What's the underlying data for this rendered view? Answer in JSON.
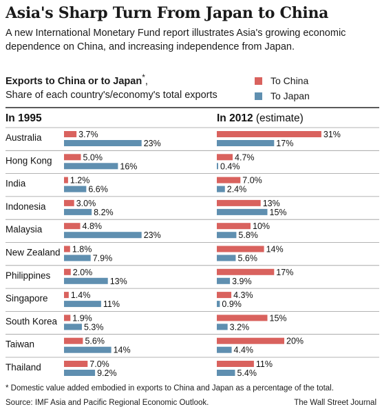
{
  "title": "Asia's Sharp Turn From Japan to China",
  "subtitle": "A new International Monetary Fund report illustrates Asia's growing economic dependence on China, and increasing independence from Japan.",
  "chart_heading": "Exports to China or to Japan",
  "chart_heading_mark": "*",
  "chart_subheading": "Share of each country's/economy's total exports",
  "footnote": "* Domestic value added embodied in exports to China and Japan as a percentage of the total.",
  "source": "Source: IMF Asia and Pacific Regional Economic Outlook.",
  "credit": "The Wall Street Journal",
  "colors": {
    "china": "#d9625e",
    "japan": "#5f8fb0"
  },
  "chart_data": {
    "type": "bar",
    "orientation": "horizontal",
    "categories": [
      "Australia",
      "Hong Kong",
      "India",
      "Indonesia",
      "Malaysia",
      "New Zealand",
      "Philippines",
      "Singapore",
      "South Korea",
      "Taiwan",
      "Thailand"
    ],
    "legend": [
      "To China",
      "To Japan"
    ],
    "panels": [
      {
        "year": "In 1995",
        "note": "",
        "series": [
          {
            "name": "To China",
            "values": [
              3.7,
              5.0,
              1.2,
              3.0,
              4.8,
              1.8,
              2.0,
              1.4,
              1.9,
              5.6,
              7.0
            ],
            "labels": [
              "3.7%",
              "5.0%",
              "1.2%",
              "3.0%",
              "4.8%",
              "1.8%",
              "2.0%",
              "1.4%",
              "1.9%",
              "5.6%",
              "7.0%"
            ]
          },
          {
            "name": "To Japan",
            "values": [
              23,
              16,
              6.6,
              8.2,
              23,
              7.9,
              13,
              11,
              5.3,
              14,
              9.2
            ],
            "labels": [
              "23%",
              "16%",
              "6.6%",
              "8.2%",
              "23%",
              "7.9%",
              "13%",
              "11%",
              "5.3%",
              "14%",
              "9.2%"
            ]
          }
        ]
      },
      {
        "year": "In 2012",
        "note": "(estimate)",
        "series": [
          {
            "name": "To China",
            "values": [
              31,
              4.7,
              7.0,
              13,
              10,
              14,
              17,
              4.3,
              15,
              20,
              11
            ],
            "labels": [
              "31%",
              "4.7%",
              "7.0%",
              "13%",
              "10%",
              "14%",
              "17%",
              "4.3%",
              "15%",
              "20%",
              "11%"
            ]
          },
          {
            "name": "To Japan",
            "values": [
              17,
              0.4,
              2.4,
              15,
              5.8,
              5.6,
              3.9,
              0.9,
              3.2,
              4.4,
              5.4
            ],
            "labels": [
              "17%",
              "0.4%",
              "2.4%",
              "15%",
              "5.8%",
              "5.6%",
              "3.9%",
              "0.9%",
              "3.2%",
              "4.4%",
              "5.4%"
            ]
          }
        ]
      }
    ]
  }
}
